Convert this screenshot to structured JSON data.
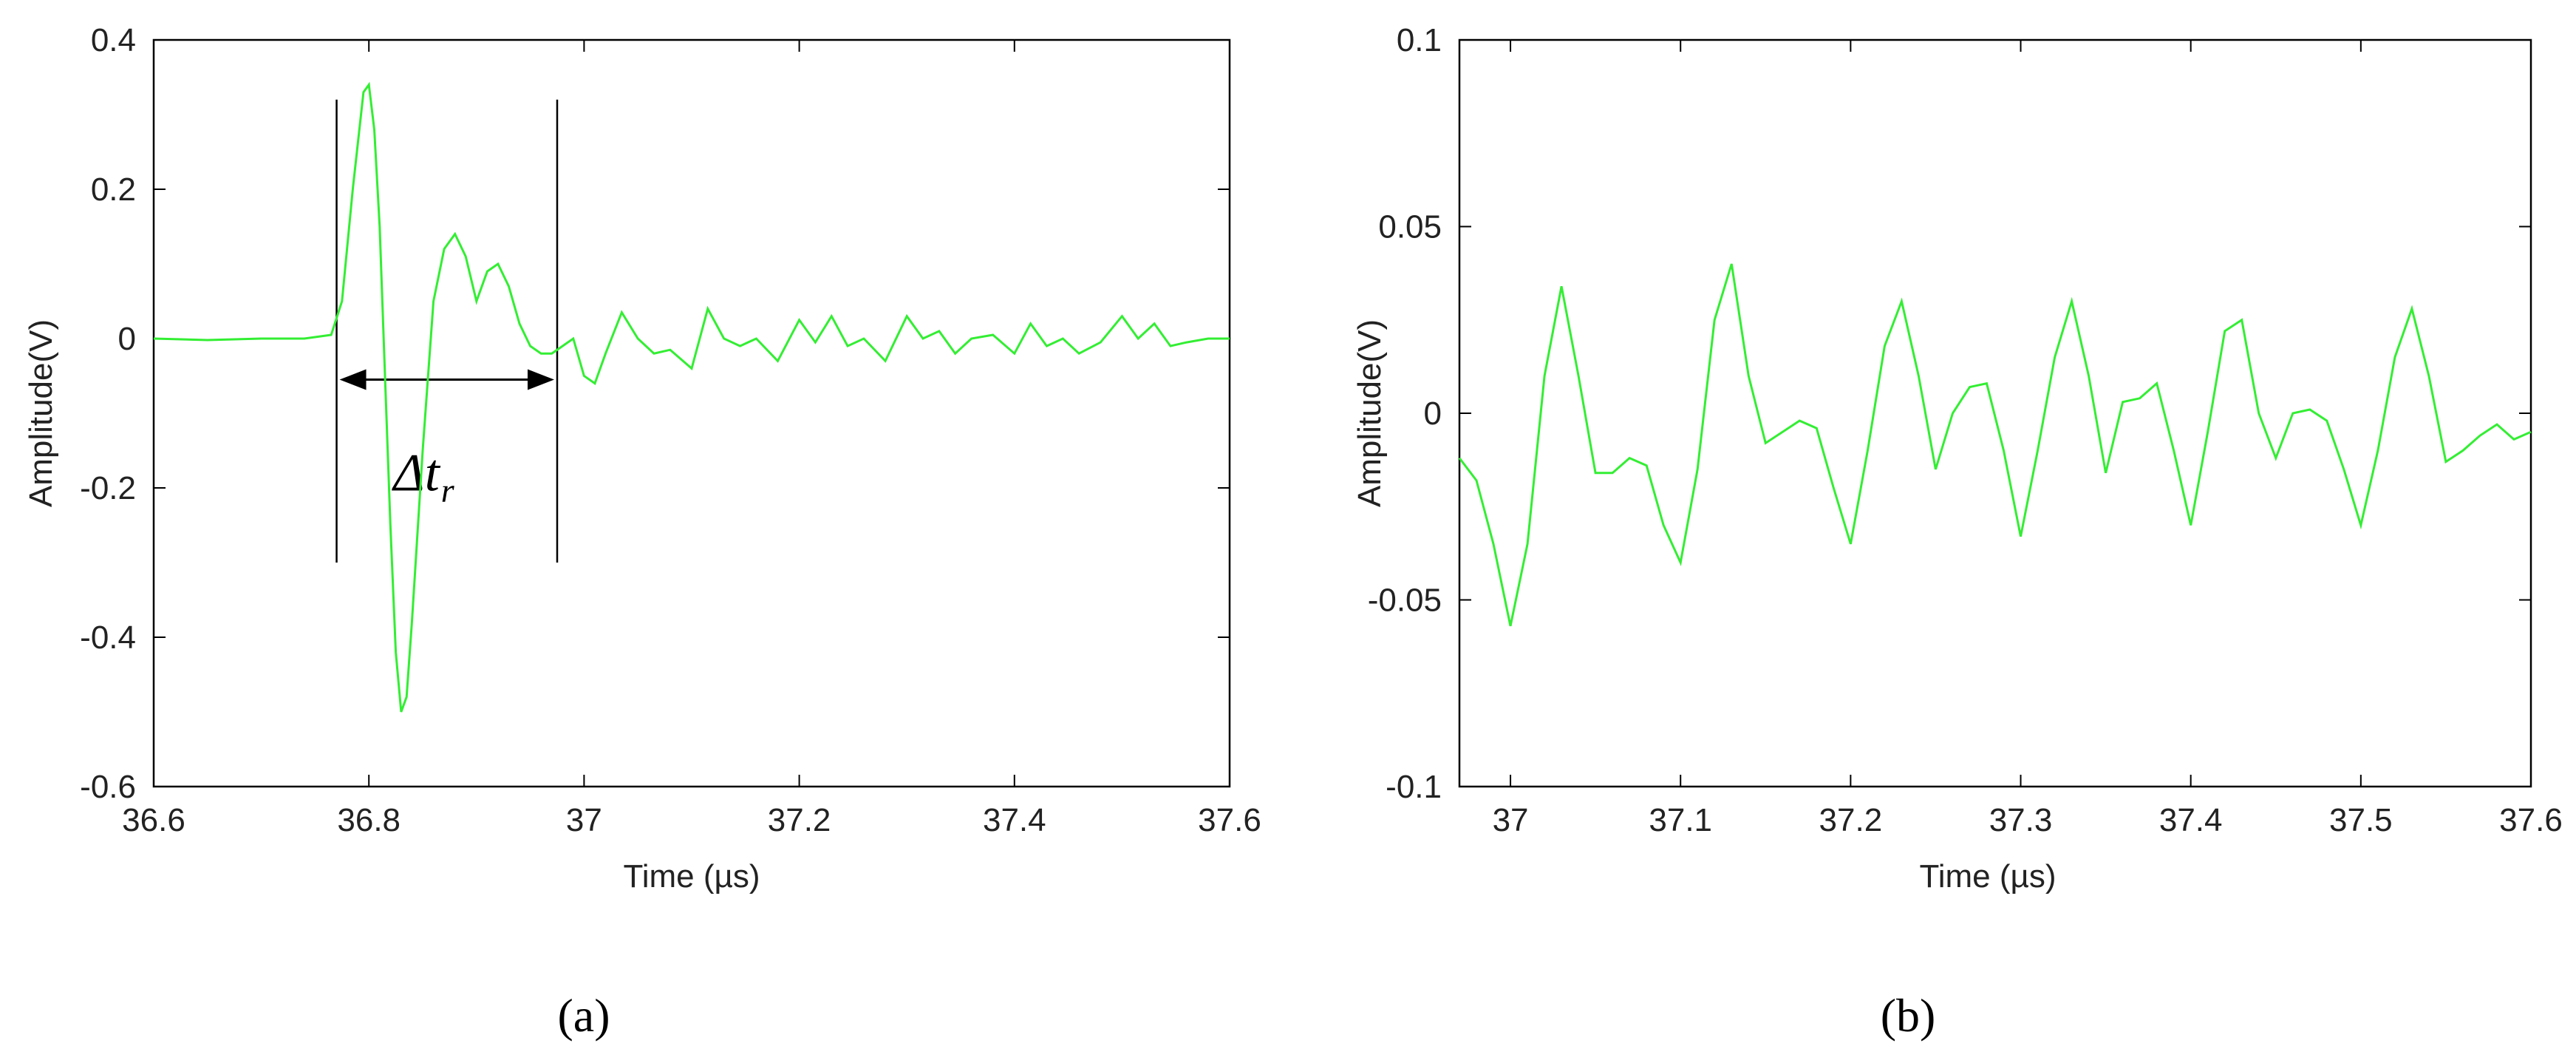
{
  "chart_data": [
    {
      "type": "line",
      "panel_label": "(a)",
      "xlabel": "Time (µs)",
      "ylabel": "Amplitude(V)",
      "xlim": [
        36.6,
        37.6
      ],
      "ylim": [
        -0.6,
        0.4
      ],
      "xticks": [
        "36.6",
        "36.8",
        "37",
        "37.2",
        "37.4",
        "37.6"
      ],
      "yticks": [
        "-0.6",
        "-0.4",
        "-0.2",
        "0",
        "0.2",
        "0.4"
      ],
      "xtick_values": [
        36.6,
        36.8,
        37.0,
        37.2,
        37.4,
        37.6
      ],
      "ytick_values": [
        -0.6,
        -0.4,
        -0.2,
        0,
        0.2,
        0.4
      ],
      "grid": false,
      "line_color": "#33ee33",
      "series": [
        {
          "x": [
            36.6,
            36.65,
            36.7,
            36.74,
            36.765,
            36.775,
            36.785,
            36.795,
            36.8,
            36.805,
            36.81,
            36.815,
            36.82,
            36.825,
            36.83,
            36.835,
            36.84,
            36.85,
            36.86,
            36.87,
            36.88,
            36.89,
            36.9,
            36.91,
            36.92,
            36.93,
            36.94,
            36.95,
            36.96,
            36.97,
            36.98,
            36.99,
            37.0,
            37.01,
            37.02,
            37.035,
            37.05,
            37.065,
            37.08,
            37.1,
            37.115,
            37.13,
            37.145,
            37.16,
            37.18,
            37.2,
            37.215,
            37.23,
            37.245,
            37.26,
            37.28,
            37.3,
            37.315,
            37.33,
            37.345,
            37.36,
            37.38,
            37.4,
            37.415,
            37.43,
            37.445,
            37.46,
            37.48,
            37.5,
            37.515,
            37.53,
            37.545,
            37.56,
            37.58,
            37.6
          ],
          "y": [
            0.0,
            -0.002,
            0.0,
            0.0,
            0.005,
            0.05,
            0.2,
            0.33,
            0.34,
            0.28,
            0.15,
            -0.05,
            -0.25,
            -0.42,
            -0.5,
            -0.48,
            -0.38,
            -0.15,
            0.05,
            0.12,
            0.14,
            0.11,
            0.05,
            0.09,
            0.1,
            0.07,
            0.02,
            -0.01,
            -0.02,
            -0.02,
            -0.01,
            0.0,
            -0.05,
            -0.06,
            -0.02,
            0.035,
            0.0,
            -0.02,
            -0.015,
            -0.04,
            0.04,
            0.0,
            -0.01,
            0.0,
            -0.03,
            0.025,
            -0.005,
            0.03,
            -0.01,
            0.0,
            -0.03,
            0.03,
            0.0,
            0.01,
            -0.02,
            0.0,
            0.005,
            -0.02,
            0.02,
            -0.01,
            0.0,
            -0.02,
            -0.005,
            0.03,
            0.0,
            0.02,
            -0.01,
            -0.005,
            0.0,
            0.0
          ]
        }
      ],
      "annotation": {
        "label": "Δt",
        "sub": "r",
        "x_start": 36.77,
        "x_end": 36.975,
        "y_arrow": -0.055,
        "y_top": 0.32,
        "y_bottom": -0.3
      }
    },
    {
      "type": "line",
      "panel_label": "(b)",
      "xlabel": "Time (µs)",
      "ylabel": "Amplitude(V)",
      "xlim": [
        36.97,
        37.6
      ],
      "ylim": [
        -0.1,
        0.1
      ],
      "xticks": [
        "37",
        "37.1",
        "37.2",
        "37.3",
        "37.4",
        "37.5",
        "37.6"
      ],
      "yticks": [
        "-0.1",
        "-0.05",
        "0",
        "0.05",
        "0.1"
      ],
      "xtick_values": [
        37.0,
        37.1,
        37.2,
        37.3,
        37.4,
        37.5,
        37.6
      ],
      "ytick_values": [
        -0.1,
        -0.05,
        0,
        0.05,
        0.1
      ],
      "grid": false,
      "line_color": "#33ee33",
      "series": [
        {
          "x": [
            36.97,
            36.98,
            36.99,
            37.0,
            37.01,
            37.02,
            37.03,
            37.04,
            37.05,
            37.06,
            37.07,
            37.08,
            37.09,
            37.1,
            37.11,
            37.12,
            37.13,
            37.14,
            37.15,
            37.16,
            37.17,
            37.18,
            37.19,
            37.2,
            37.21,
            37.22,
            37.23,
            37.24,
            37.25,
            37.26,
            37.27,
            37.28,
            37.29,
            37.3,
            37.31,
            37.32,
            37.33,
            37.34,
            37.35,
            37.36,
            37.37,
            37.38,
            37.39,
            37.4,
            37.41,
            37.42,
            37.43,
            37.44,
            37.45,
            37.46,
            37.47,
            37.48,
            37.49,
            37.5,
            37.51,
            37.52,
            37.53,
            37.54,
            37.55,
            37.56,
            37.57,
            37.58,
            37.59,
            37.6
          ],
          "y": [
            -0.012,
            -0.018,
            -0.035,
            -0.057,
            -0.035,
            0.01,
            0.034,
            0.01,
            -0.016,
            -0.016,
            -0.012,
            -0.014,
            -0.03,
            -0.04,
            -0.015,
            0.025,
            0.04,
            0.01,
            -0.008,
            -0.005,
            -0.002,
            -0.004,
            -0.02,
            -0.035,
            -0.01,
            0.018,
            0.03,
            0.01,
            -0.015,
            0.0,
            0.007,
            0.008,
            -0.01,
            -0.033,
            -0.01,
            0.015,
            0.03,
            0.01,
            -0.016,
            0.003,
            0.004,
            0.008,
            -0.01,
            -0.03,
            -0.005,
            0.022,
            0.025,
            0.0,
            -0.012,
            0.0,
            0.001,
            -0.002,
            -0.015,
            -0.03,
            -0.01,
            0.015,
            0.028,
            0.01,
            -0.013,
            -0.01,
            -0.006,
            -0.003,
            -0.007,
            -0.005
          ]
        }
      ]
    }
  ]
}
